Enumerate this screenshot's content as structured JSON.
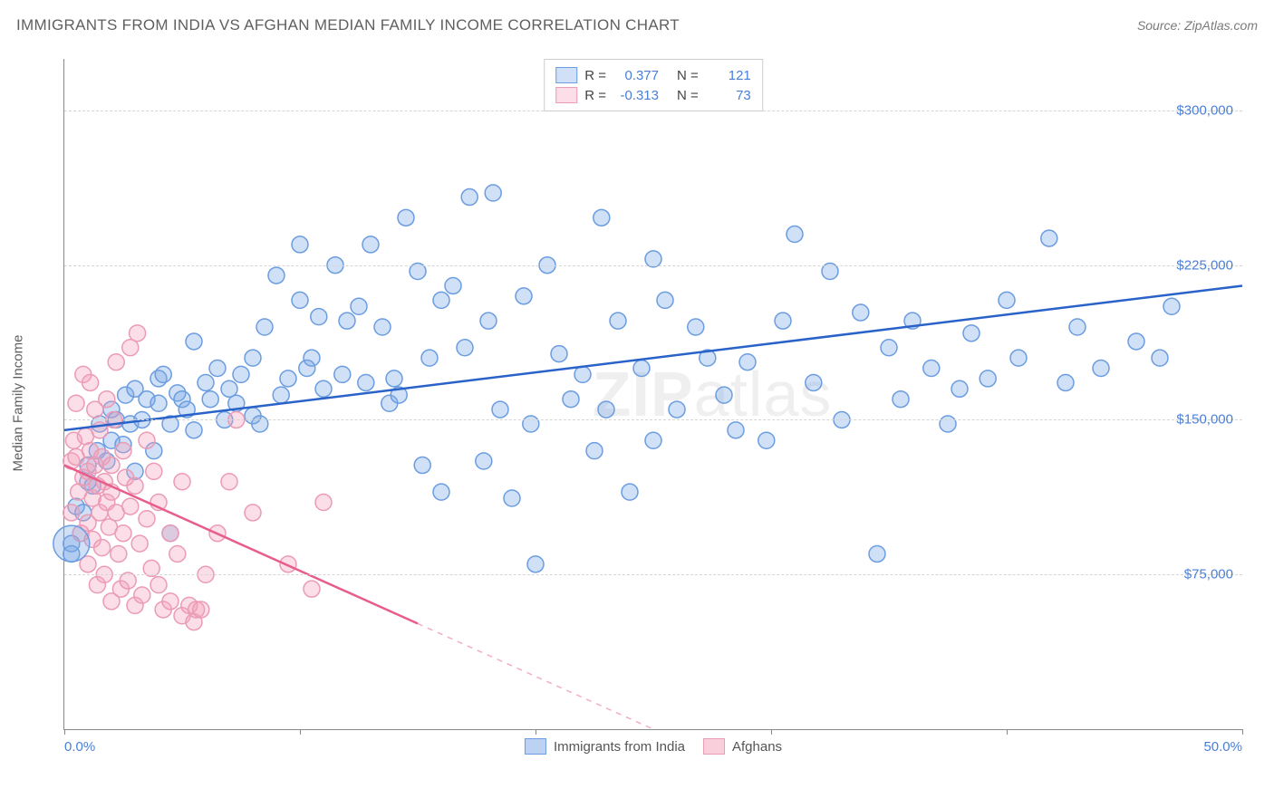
{
  "header": {
    "title": "IMMIGRANTS FROM INDIA VS AFGHAN MEDIAN FAMILY INCOME CORRELATION CHART",
    "source": "Source: ZipAtlas.com"
  },
  "ylabel": "Median Family Income",
  "watermark_part1": "ZIP",
  "watermark_part2": "atlas",
  "chart": {
    "type": "scatter",
    "xlim": [
      0,
      50
    ],
    "ylim": [
      0,
      325000
    ],
    "x_ticks": [
      0,
      10,
      20,
      30,
      40,
      50
    ],
    "x_tick_labels": {
      "0": "0.0%",
      "50": "50.0%"
    },
    "y_ticks": [
      75000,
      150000,
      225000,
      300000
    ],
    "y_tick_labels": [
      "$75,000",
      "$150,000",
      "$225,000",
      "$300,000"
    ],
    "grid_color": "#d5d5d5",
    "axis_color": "#888888",
    "background_color": "#ffffff",
    "label_color": "#4a7fd8",
    "text_color": "#5f5f5f",
    "marker_radius": 9,
    "marker_stroke_width": 1.5,
    "trend_line_width": 2.5
  },
  "series": [
    {
      "name": "Immigrants from India",
      "fill_color": "rgba(120,165,230,0.35)",
      "stroke_color": "#6b9de0",
      "line_color": "#2962c9",
      "R": "0.377",
      "N": "121",
      "trend": {
        "x1": 0,
        "y1": 145000,
        "x2": 50,
        "y2": 215000,
        "solid_until": 50
      },
      "points": [
        [
          0.3,
          90000
        ],
        [
          0.3,
          85000
        ],
        [
          25,
          140000
        ],
        [
          0.5,
          108000
        ],
        [
          0.8,
          105000
        ],
        [
          1.0,
          120000
        ],
        [
          1.0,
          128000
        ],
        [
          1.2,
          118000
        ],
        [
          1.4,
          135000
        ],
        [
          1.5,
          148000
        ],
        [
          1.8,
          130000
        ],
        [
          2.0,
          140000
        ],
        [
          2.0,
          155000
        ],
        [
          2.2,
          150000
        ],
        [
          2.5,
          138000
        ],
        [
          2.6,
          162000
        ],
        [
          2.8,
          148000
        ],
        [
          3.0,
          165000
        ],
        [
          3.0,
          125000
        ],
        [
          3.3,
          150000
        ],
        [
          3.5,
          160000
        ],
        [
          3.8,
          135000
        ],
        [
          4.0,
          158000
        ],
        [
          4.0,
          170000
        ],
        [
          4.2,
          172000
        ],
        [
          4.5,
          148000
        ],
        [
          4.5,
          95000
        ],
        [
          4.8,
          163000
        ],
        [
          5.0,
          160000
        ],
        [
          5.2,
          155000
        ],
        [
          5.5,
          145000
        ],
        [
          5.5,
          188000
        ],
        [
          6.0,
          168000
        ],
        [
          6.2,
          160000
        ],
        [
          6.5,
          175000
        ],
        [
          6.8,
          150000
        ],
        [
          7.0,
          165000
        ],
        [
          7.3,
          158000
        ],
        [
          7.5,
          172000
        ],
        [
          8.0,
          180000
        ],
        [
          8.0,
          152000
        ],
        [
          8.3,
          148000
        ],
        [
          8.5,
          195000
        ],
        [
          9.0,
          220000
        ],
        [
          9.2,
          162000
        ],
        [
          9.5,
          170000
        ],
        [
          10.0,
          208000
        ],
        [
          10.0,
          235000
        ],
        [
          10.3,
          175000
        ],
        [
          10.5,
          180000
        ],
        [
          10.8,
          200000
        ],
        [
          11.0,
          165000
        ],
        [
          11.5,
          225000
        ],
        [
          11.8,
          172000
        ],
        [
          12.0,
          198000
        ],
        [
          12.5,
          205000
        ],
        [
          12.8,
          168000
        ],
        [
          13.0,
          235000
        ],
        [
          13.5,
          195000
        ],
        [
          13.8,
          158000
        ],
        [
          14.0,
          170000
        ],
        [
          14.2,
          162000
        ],
        [
          14.5,
          248000
        ],
        [
          15.0,
          222000
        ],
        [
          15.2,
          128000
        ],
        [
          15.5,
          180000
        ],
        [
          16.0,
          208000
        ],
        [
          16.0,
          115000
        ],
        [
          16.5,
          215000
        ],
        [
          17.0,
          185000
        ],
        [
          17.2,
          258000
        ],
        [
          17.8,
          130000
        ],
        [
          18.0,
          198000
        ],
        [
          18.2,
          260000
        ],
        [
          18.5,
          155000
        ],
        [
          19.0,
          112000
        ],
        [
          19.5,
          210000
        ],
        [
          19.8,
          148000
        ],
        [
          20.0,
          80000
        ],
        [
          20.5,
          225000
        ],
        [
          21.0,
          182000
        ],
        [
          21.5,
          160000
        ],
        [
          22.0,
          172000
        ],
        [
          22.5,
          135000
        ],
        [
          22.8,
          248000
        ],
        [
          23.0,
          155000
        ],
        [
          23.5,
          198000
        ],
        [
          24.0,
          115000
        ],
        [
          24.5,
          175000
        ],
        [
          25.0,
          228000
        ],
        [
          25.5,
          208000
        ],
        [
          26.0,
          155000
        ],
        [
          26.8,
          195000
        ],
        [
          27.3,
          180000
        ],
        [
          28.0,
          162000
        ],
        [
          28.5,
          145000
        ],
        [
          29.0,
          178000
        ],
        [
          29.8,
          140000
        ],
        [
          30.5,
          198000
        ],
        [
          31.0,
          240000
        ],
        [
          31.8,
          168000
        ],
        [
          32.5,
          222000
        ],
        [
          33.0,
          150000
        ],
        [
          33.8,
          202000
        ],
        [
          34.5,
          85000
        ],
        [
          35.0,
          185000
        ],
        [
          35.5,
          160000
        ],
        [
          36.0,
          198000
        ],
        [
          36.8,
          175000
        ],
        [
          37.5,
          148000
        ],
        [
          38.0,
          165000
        ],
        [
          38.5,
          192000
        ],
        [
          39.2,
          170000
        ],
        [
          40.0,
          208000
        ],
        [
          40.5,
          180000
        ],
        [
          41.8,
          238000
        ],
        [
          42.5,
          168000
        ],
        [
          43.0,
          195000
        ],
        [
          44.0,
          175000
        ],
        [
          45.5,
          188000
        ],
        [
          46.5,
          180000
        ],
        [
          47.0,
          205000
        ]
      ]
    },
    {
      "name": "Afghans",
      "fill_color": "rgba(244,160,185,0.35)",
      "stroke_color": "#eb9bb5",
      "line_color": "#e85d8a",
      "R": "-0.313",
      "N": "73",
      "trend": {
        "x1": 0,
        "y1": 128000,
        "x2": 25,
        "y2": 0,
        "solid_until": 15
      },
      "points": [
        [
          0.3,
          130000
        ],
        [
          0.3,
          105000
        ],
        [
          0.4,
          140000
        ],
        [
          0.5,
          132000
        ],
        [
          0.5,
          158000
        ],
        [
          0.6,
          115000
        ],
        [
          0.7,
          95000
        ],
        [
          0.8,
          172000
        ],
        [
          0.8,
          122000
        ],
        [
          0.9,
          142000
        ],
        [
          1.0,
          125000
        ],
        [
          1.0,
          100000
        ],
        [
          1.0,
          80000
        ],
        [
          1.1,
          168000
        ],
        [
          1.1,
          135000
        ],
        [
          1.2,
          112000
        ],
        [
          1.2,
          92000
        ],
        [
          1.3,
          155000
        ],
        [
          1.3,
          128000
        ],
        [
          1.4,
          70000
        ],
        [
          1.4,
          118000
        ],
        [
          1.5,
          145000
        ],
        [
          1.5,
          105000
        ],
        [
          1.6,
          88000
        ],
        [
          1.6,
          132000
        ],
        [
          1.7,
          120000
        ],
        [
          1.7,
          75000
        ],
        [
          1.8,
          160000
        ],
        [
          1.8,
          110000
        ],
        [
          1.9,
          98000
        ],
        [
          2.0,
          62000
        ],
        [
          2.0,
          128000
        ],
        [
          2.0,
          115000
        ],
        [
          2.1,
          150000
        ],
        [
          2.2,
          178000
        ],
        [
          2.2,
          105000
        ],
        [
          2.3,
          85000
        ],
        [
          2.4,
          68000
        ],
        [
          2.5,
          135000
        ],
        [
          2.5,
          95000
        ],
        [
          2.6,
          122000
        ],
        [
          2.7,
          72000
        ],
        [
          2.8,
          185000
        ],
        [
          2.8,
          108000
        ],
        [
          3.0,
          60000
        ],
        [
          3.0,
          118000
        ],
        [
          3.1,
          192000
        ],
        [
          3.2,
          90000
        ],
        [
          3.3,
          65000
        ],
        [
          3.5,
          102000
        ],
        [
          3.5,
          140000
        ],
        [
          3.7,
          78000
        ],
        [
          3.8,
          125000
        ],
        [
          4.0,
          70000
        ],
        [
          4.0,
          110000
        ],
        [
          4.2,
          58000
        ],
        [
          4.5,
          95000
        ],
        [
          4.5,
          62000
        ],
        [
          4.8,
          85000
        ],
        [
          5.0,
          55000
        ],
        [
          5.0,
          120000
        ],
        [
          5.3,
          60000
        ],
        [
          5.5,
          52000
        ],
        [
          5.6,
          58000
        ],
        [
          5.8,
          58000
        ],
        [
          6.0,
          75000
        ],
        [
          6.5,
          95000
        ],
        [
          7.0,
          120000
        ],
        [
          7.3,
          150000
        ],
        [
          8.0,
          105000
        ],
        [
          9.5,
          80000
        ],
        [
          10.5,
          68000
        ],
        [
          11.0,
          110000
        ]
      ]
    }
  ],
  "legend_bottom": [
    {
      "label": "Immigrants from India",
      "fill": "rgba(120,165,230,0.5)",
      "stroke": "#6b9de0"
    },
    {
      "label": "Afghans",
      "fill": "rgba(244,160,185,0.5)",
      "stroke": "#eb9bb5"
    }
  ]
}
